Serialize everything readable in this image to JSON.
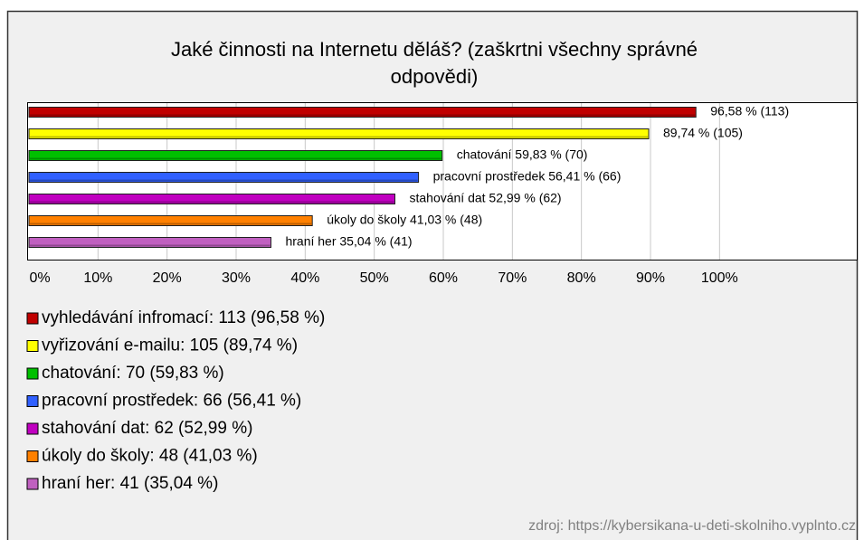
{
  "chart_data": {
    "type": "bar",
    "orientation": "horizontal",
    "title": "Jaké činnosti na Internetu děláš? (zaškrtni všechny správné odpovědi)",
    "title_lines": [
      "Jaké činnosti na Internetu děláš? (zaškrtni všechny správné",
      "odpovědi)"
    ],
    "categories": [
      "vyhledávání infromací: 113 (96,58 %)",
      "vyřizování e-mailu: 105 (89,74 %)",
      "chatování: 70 (59,83 %)",
      "pracovní prostředek: 66 (56,41 %)",
      "stahování dat: 62 (52,99 %)",
      "úkoly do školy: 48 (41,03 %)",
      "hraní her: 41 (35,04 %)"
    ],
    "values": [
      96.58,
      89.74,
      59.83,
      56.41,
      52.99,
      41.03,
      35.04
    ],
    "value_labels": [
      "96,58 % (113)",
      "89,74 % (105)",
      "chatování 59,83 % (70)",
      "pracovní prostředek 56,41 % (66)",
      "stahování dat 52,99 % (62)",
      "úkoly do školy 41,03 % (48)",
      "hraní her 35,04 % (41)"
    ],
    "colors": [
      "#c00000",
      "#ffff00",
      "#00c000",
      "#3060ff",
      "#c000c0",
      "#ff8000",
      "#c060c0"
    ],
    "xlim": [
      0,
      120
    ],
    "xticks": [
      {
        "value": 0,
        "label": "0%"
      },
      {
        "value": 10,
        "label": "10%"
      },
      {
        "value": 20,
        "label": "20%"
      },
      {
        "value": 30,
        "label": "30%"
      },
      {
        "value": 40,
        "label": "40%"
      },
      {
        "value": 50,
        "label": "50%"
      },
      {
        "value": 60,
        "label": "60%"
      },
      {
        "value": 70,
        "label": "70%"
      },
      {
        "value": 80,
        "label": "80%"
      },
      {
        "value": 90,
        "label": "90%"
      },
      {
        "value": 100,
        "label": "100%"
      }
    ],
    "grid": true,
    "source": "zdroj: https://kybersikana-u-deti-skolniho.vyplnto.cz"
  }
}
